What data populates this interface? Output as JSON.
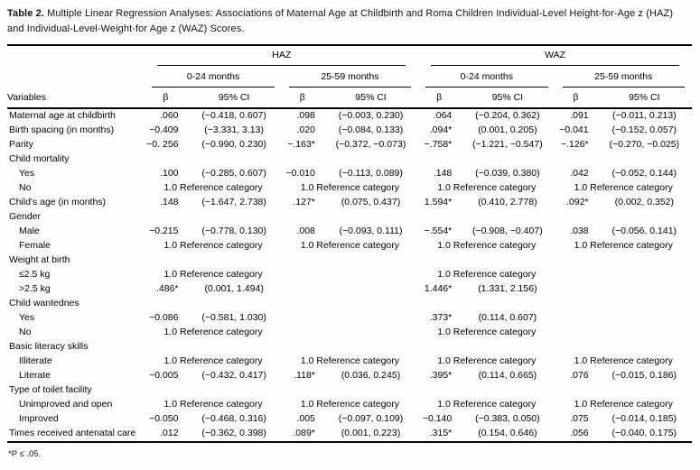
{
  "title": {
    "label": "Table 2.",
    "text": " Multiple Linear Regression Analyses: Associations of Maternal Age at Childbirth and Roma Children Individual-Level Height-for-Age z (HAZ) and Individual-Level-Weight-for Age z (WAZ) Scores."
  },
  "footnote": "*P ≤ .05.",
  "table": {
    "col_groups": [
      "HAZ",
      "WAZ"
    ],
    "age_groups": [
      "0-24 months",
      "25-59 months",
      "0-24 months",
      "25-59 months"
    ],
    "variables_header": "Variables",
    "beta_header": "β",
    "ci_header": "95% CI",
    "reference_text": "1.0 Reference category",
    "rows": [
      {
        "label": "Maternal age at childbirth",
        "type": "data",
        "indent": false,
        "cols": [
          {
            "b": ".060",
            "ci": "(−0.418, 0.607)"
          },
          {
            "b": ".098",
            "ci": "(−0.003, 0.230)"
          },
          {
            "b": ".064",
            "ci": "(−0.204, 0.362)"
          },
          {
            "b": ".091",
            "ci": "(−0.011, 0.213)"
          }
        ]
      },
      {
        "label": "Birth spacing (in months)",
        "type": "data",
        "indent": false,
        "cols": [
          {
            "b": "−0.409",
            "ci": "(−3.331, 3.13)"
          },
          {
            "b": ".020",
            "ci": "(−0.084, 0.133)"
          },
          {
            "b": ".094*",
            "ci": "(0.001, 0.205)"
          },
          {
            "b": "−0.041",
            "ci": "(−0.152, 0.057)"
          }
        ]
      },
      {
        "label": "Parity",
        "type": "data",
        "indent": false,
        "cols": [
          {
            "b": "−0. 256",
            "ci": "(−0.990, 0.230)"
          },
          {
            "b": "−.163*",
            "ci": "(−0.372, −0.073)"
          },
          {
            "b": "−.758*",
            "ci": "(−1.221, −0.547)"
          },
          {
            "b": "−.126*",
            "ci": "(−0.270, −0.025)"
          }
        ]
      },
      {
        "label": "Child mortality",
        "type": "section",
        "indent": false,
        "cols": [
          null,
          null,
          null,
          null
        ]
      },
      {
        "label": "Yes",
        "type": "data",
        "indent": true,
        "cols": [
          {
            "b": ".100",
            "ci": "(−0.285, 0.607)"
          },
          {
            "b": "−0.010",
            "ci": "(−0.113, 0.089)"
          },
          {
            "b": ".148",
            "ci": "(−0.039, 0.380)"
          },
          {
            "b": ".042",
            "ci": "(−0.052, 0.144)"
          }
        ]
      },
      {
        "label": "No",
        "type": "data",
        "indent": true,
        "cols": [
          {
            "ref": true
          },
          {
            "ref": true
          },
          {
            "ref": true
          },
          {
            "ref": true
          }
        ]
      },
      {
        "label": "Child's age (in months)",
        "type": "data",
        "indent": false,
        "cols": [
          {
            "b": ".148",
            "ci": "(−1.647, 2.738)"
          },
          {
            "b": ".127*",
            "ci": "(0.075, 0.437)"
          },
          {
            "b": "1.594*",
            "ci": "(0.410, 2.778)"
          },
          {
            "b": ".092*",
            "ci": "(0.002, 0.352)"
          }
        ]
      },
      {
        "label": "Gender",
        "type": "section",
        "indent": false,
        "cols": [
          null,
          null,
          null,
          null
        ]
      },
      {
        "label": "Male",
        "type": "data",
        "indent": true,
        "cols": [
          {
            "b": "−0.215",
            "ci": "(−0.778, 0.130)"
          },
          {
            "b": ".008",
            "ci": "(−0.093, 0.111)"
          },
          {
            "b": "−.554*",
            "ci": "(−0.908, −0.407)"
          },
          {
            "b": ".038",
            "ci": "(−0.056, 0.141)"
          }
        ]
      },
      {
        "label": "Female",
        "type": "data",
        "indent": true,
        "cols": [
          {
            "ref": true
          },
          {
            "ref": true
          },
          {
            "ref": true
          },
          {
            "ref": true
          }
        ]
      },
      {
        "label": "Weight at birth",
        "type": "section",
        "indent": false,
        "cols": [
          null,
          null,
          null,
          null
        ]
      },
      {
        "label": "≤2.5 kg",
        "type": "data",
        "indent": true,
        "cols": [
          {
            "ref": true
          },
          null,
          {
            "ref": true
          },
          null
        ]
      },
      {
        "label": ">2.5 kg",
        "type": "data",
        "indent": true,
        "cols": [
          {
            "b": ".486*",
            "ci": "(0.001, 1.494)"
          },
          null,
          {
            "b": "1.446*",
            "ci": "(1.331, 2.156)"
          },
          null
        ]
      },
      {
        "label": "Child wantednes",
        "type": "section",
        "indent": false,
        "cols": [
          null,
          null,
          null,
          null
        ]
      },
      {
        "label": "Yes",
        "type": "data",
        "indent": true,
        "cols": [
          {
            "b": "−0.086",
            "ci": "(−0.581, 1.030)"
          },
          null,
          {
            "b": ".373*",
            "ci": "(0.114, 0.607)"
          },
          null
        ]
      },
      {
        "label": "No",
        "type": "data",
        "indent": true,
        "cols": [
          {
            "ref": true
          },
          null,
          {
            "ref": true
          },
          null
        ]
      },
      {
        "label": "Basic literacy skills",
        "type": "section",
        "indent": false,
        "cols": [
          null,
          null,
          null,
          null
        ]
      },
      {
        "label": "Illiterate",
        "type": "data",
        "indent": true,
        "cols": [
          {
            "ref": true
          },
          {
            "ref": true
          },
          {
            "ref": true
          },
          {
            "ref": true
          }
        ]
      },
      {
        "label": "Literate",
        "type": "data",
        "indent": true,
        "cols": [
          {
            "b": "−0.005",
            "ci": "(−0.432, 0.417)"
          },
          {
            "b": ".118*",
            "ci": "(0.036, 0.245)"
          },
          {
            "b": ".395*",
            "ci": "(0.114, 0.665)"
          },
          {
            "b": ".076",
            "ci": "(−0.015, 0.186)"
          }
        ]
      },
      {
        "label": "Type of toilet facility",
        "type": "section",
        "indent": false,
        "cols": [
          null,
          null,
          null,
          null
        ]
      },
      {
        "label": "Unimproved and open",
        "type": "data",
        "indent": true,
        "cols": [
          {
            "ref": true
          },
          {
            "ref": true
          },
          {
            "ref": true
          },
          {
            "ref": true
          }
        ]
      },
      {
        "label": "Improved",
        "type": "data",
        "indent": true,
        "cols": [
          {
            "b": "−0.050",
            "ci": "(−0.468, 0.316)"
          },
          {
            "b": ".005",
            "ci": "(−0.097, 0.109)"
          },
          {
            "b": "−0.140",
            "ci": "(−0.383, 0.050)"
          },
          {
            "b": ".075",
            "ci": "(−0.014, 0.185)"
          }
        ]
      },
      {
        "label": "Times received antenatal care",
        "type": "data",
        "indent": false,
        "cols": [
          {
            "b": ".012",
            "ci": "(−0.362, 0.398)"
          },
          {
            "b": ".089*",
            "ci": "(0.001, 0.223)"
          },
          {
            "b": ".315*",
            "ci": "(0.154, 0.646)"
          },
          {
            "b": ".056",
            "ci": "(−0.040, 0.175)"
          }
        ]
      }
    ]
  }
}
